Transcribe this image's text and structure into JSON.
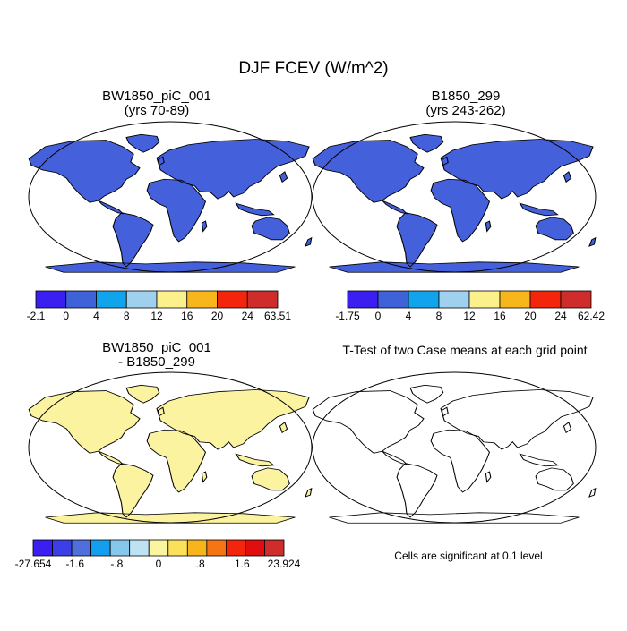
{
  "title": "DJF FCEV (W/m^2)",
  "panels": [
    {
      "title_line1": "BW1850_piC_001",
      "title_line2": "(yrs 70-89)",
      "colorbar": {
        "labels": [
          "-2.1",
          "0",
          "4",
          "8",
          "12",
          "16",
          "20",
          "24",
          "63.51"
        ],
        "colors": [
          "#3b1ff0",
          "#3f62d8",
          "#11a4ec",
          "#9fd0ee",
          "#fbf08c",
          "#f7b71c",
          "#f3260c",
          "#cf2c2c"
        ]
      }
    },
    {
      "title_line1": "B1850_299",
      "title_line2": "(yrs 243-262)",
      "colorbar": {
        "labels": [
          "-1.75",
          "0",
          "4",
          "8",
          "12",
          "16",
          "20",
          "24",
          "62.42"
        ],
        "colors": [
          "#3b1ff0",
          "#3f62d8",
          "#11a4ec",
          "#9fd0ee",
          "#fbf08c",
          "#f7b71c",
          "#f3260c",
          "#cf2c2c"
        ]
      }
    },
    {
      "title_line1": "BW1850_piC_001",
      "title_line2": "- B1850_299",
      "colorbar": {
        "labels": [
          "-27.654",
          "-1.6",
          "-.8",
          "0",
          ".8",
          "1.6",
          "23.924"
        ],
        "colors": [
          "#3b1ff0",
          "#3c3fe6",
          "#4f6fdc",
          "#139fee",
          "#86c8ec",
          "#bfe2f2",
          "#fbf5a0",
          "#fbe15a",
          "#f7b41b",
          "#f57514",
          "#f3250c",
          "#e00e0e",
          "#cf2c2c"
        ]
      }
    },
    {
      "title_line1": "T-Test of two Case means at each grid point",
      "footnote": "Cells are significant at 0.1 level"
    }
  ],
  "colors": {
    "ocean": "#ffffff",
    "significant": "#e8000b",
    "coastline": "#000000"
  }
}
